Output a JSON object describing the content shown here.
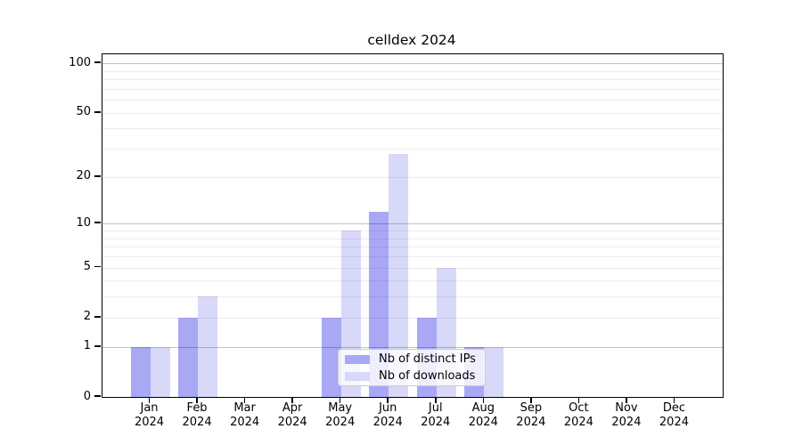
{
  "title": "celldex 2024",
  "chart_data": {
    "type": "bar",
    "title": "celldex 2024",
    "categories": [
      "Jan 2024",
      "Feb 2024",
      "Mar 2024",
      "Apr 2024",
      "May 2024",
      "Jun 2024",
      "Jul 2024",
      "Aug 2024",
      "Sep 2024",
      "Oct 2024",
      "Nov 2024",
      "Dec 2024"
    ],
    "series": [
      {
        "name": "Nb of distinct IPs",
        "color": "#a8a8f5",
        "values": [
          1,
          2,
          0,
          0,
          2,
          12,
          2,
          1,
          0,
          0,
          0,
          0
        ]
      },
      {
        "name": "Nb of downloads",
        "color": "#d8d8f8",
        "values": [
          1,
          3,
          0,
          0,
          9,
          28,
          5,
          1,
          0,
          0,
          0,
          0
        ]
      }
    ],
    "xlabel": "",
    "ylabel": "",
    "yscale": "log1p",
    "ylim": [
      0,
      100
    ],
    "y_ticks": [
      0,
      1,
      2,
      5,
      10,
      20,
      50,
      100
    ],
    "gridlines": {
      "major": [
        1,
        10,
        100
      ],
      "minor": [
        2,
        3,
        4,
        5,
        6,
        7,
        8,
        9,
        20,
        30,
        40,
        50,
        60,
        70,
        80,
        90
      ]
    },
    "grid": "on",
    "legend_position": "bottom-center",
    "legend_entries": [
      "Nb of distinct IPs",
      "Nb of downloads"
    ]
  }
}
